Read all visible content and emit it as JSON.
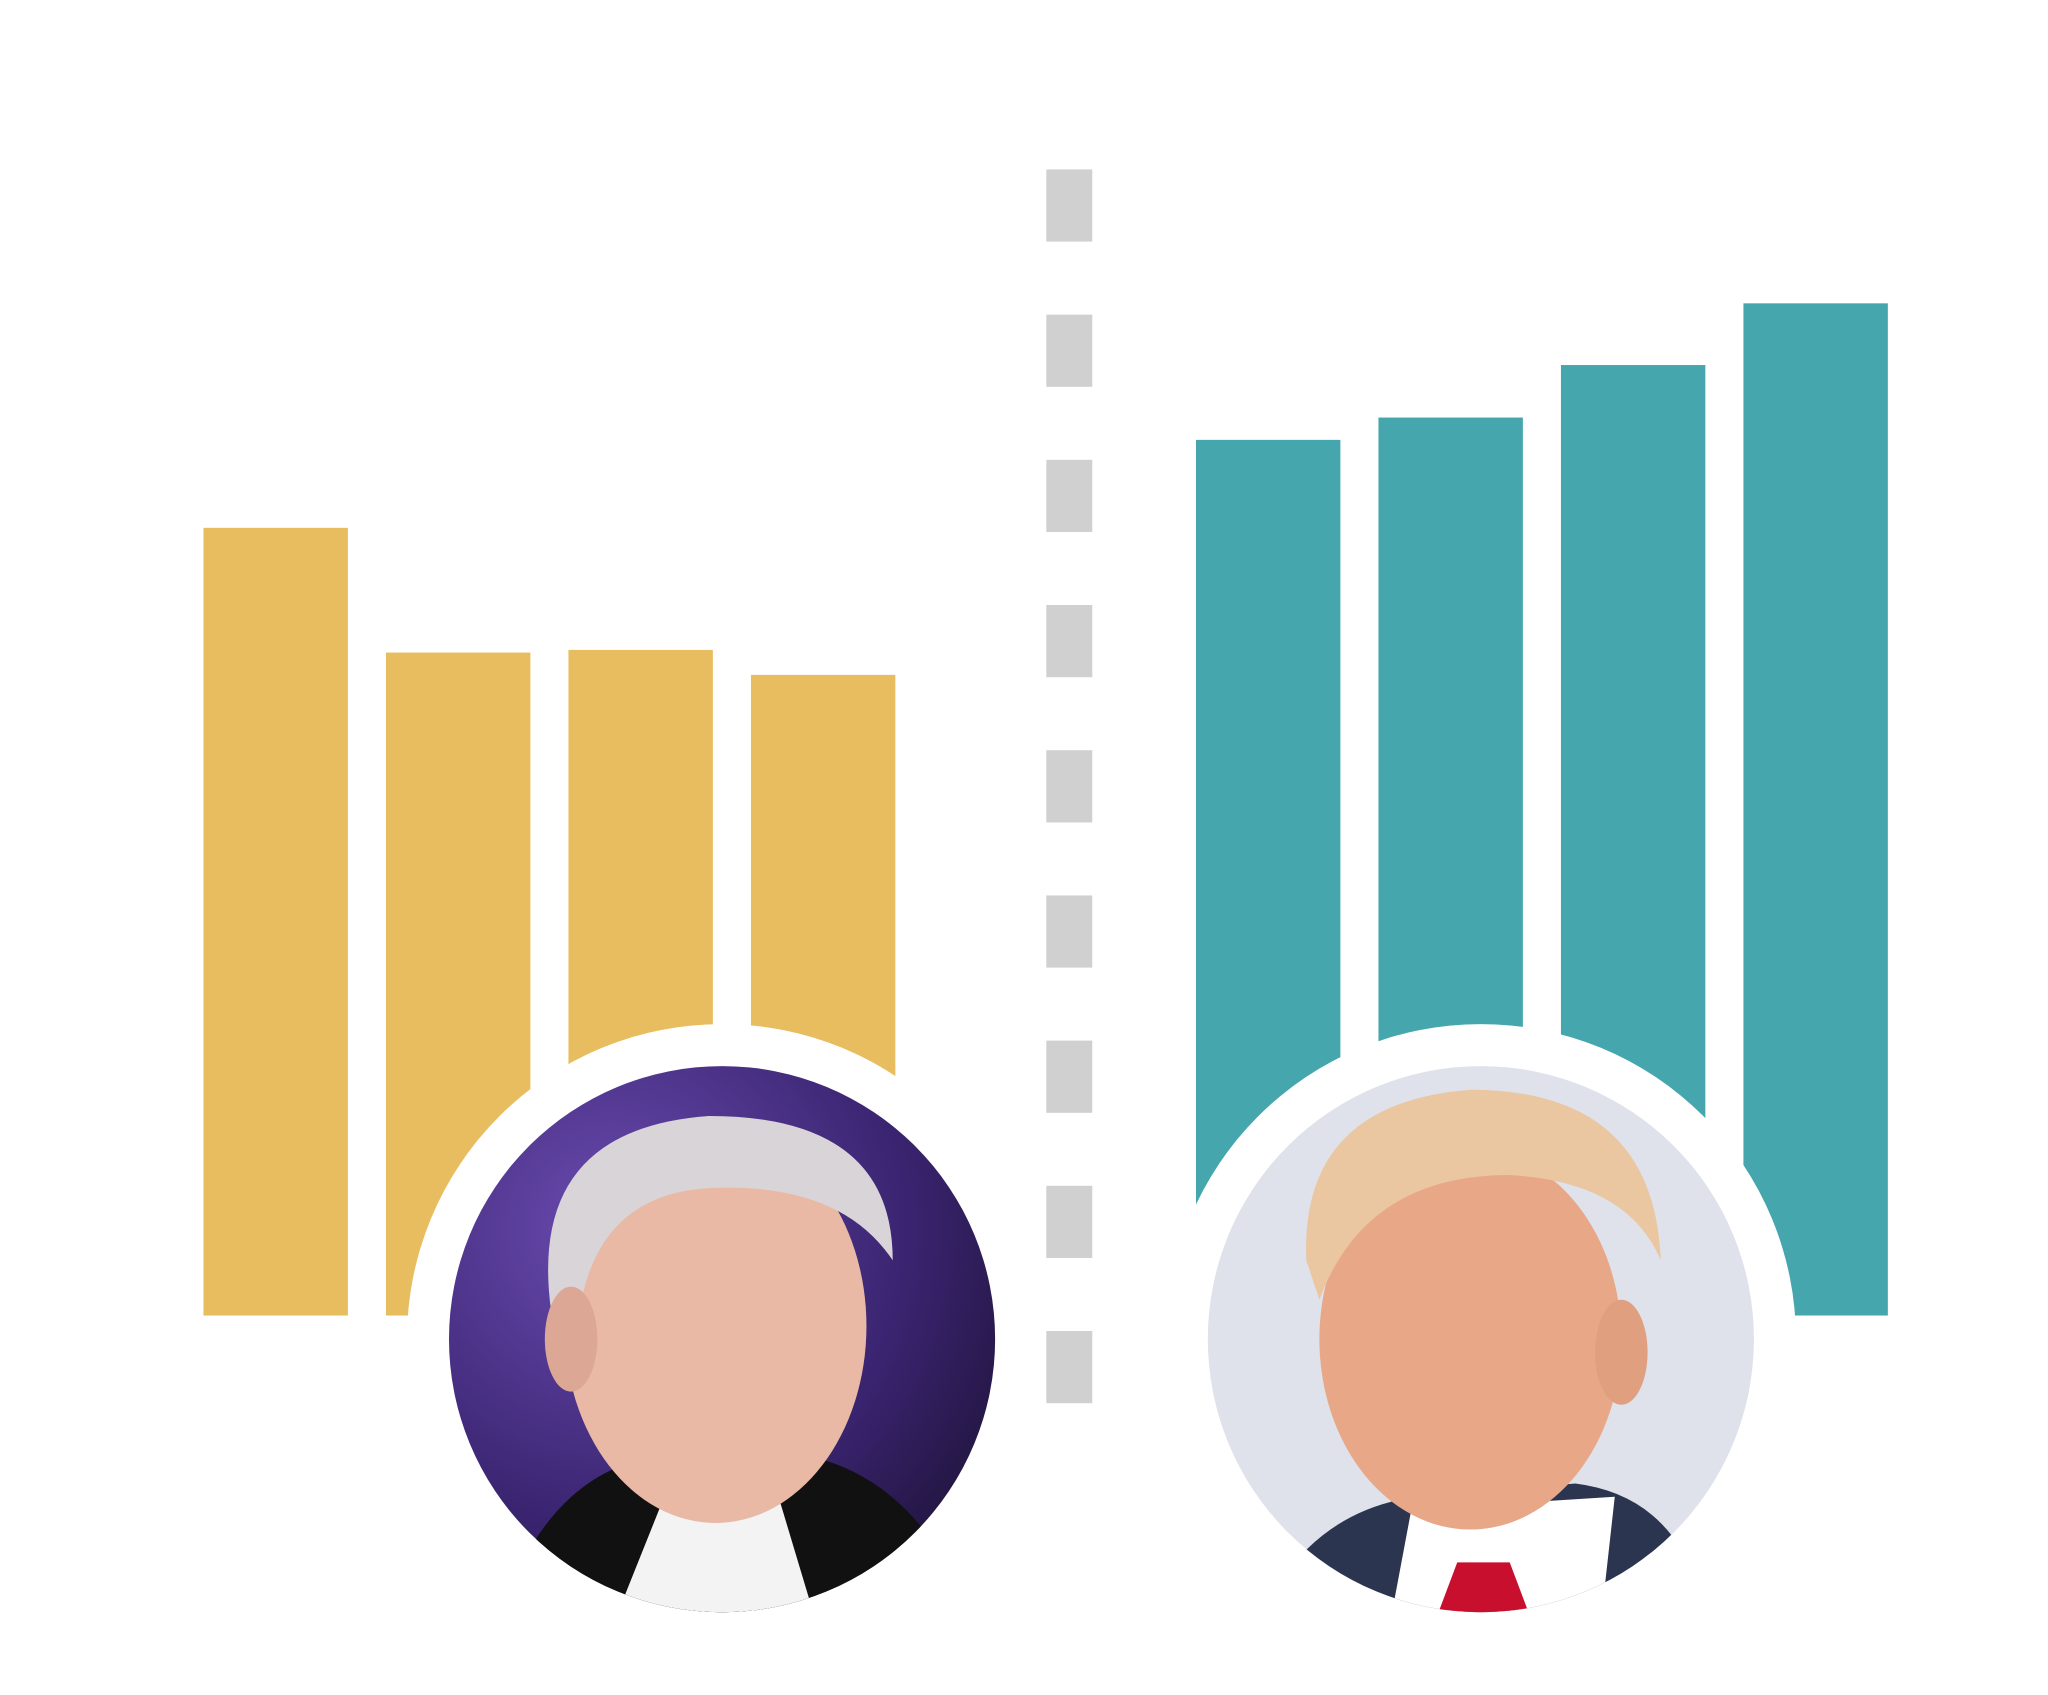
{
  "chart_data": {
    "type": "bar",
    "title": "",
    "xlabel": "",
    "ylabel": "",
    "grid": false,
    "ylim": [
      0,
      900
    ],
    "series": [
      {
        "values": [
          600,
          505,
          507,
          488
        ],
        "color": "#E8BD5F",
        "portrait": "biden-portrait"
      },
      {
        "values": [
          667,
          684,
          724,
          771
        ],
        "color": "#45A6AD",
        "portrait": "trump-portrait"
      }
    ],
    "divider_color": "#D0D0D0"
  }
}
